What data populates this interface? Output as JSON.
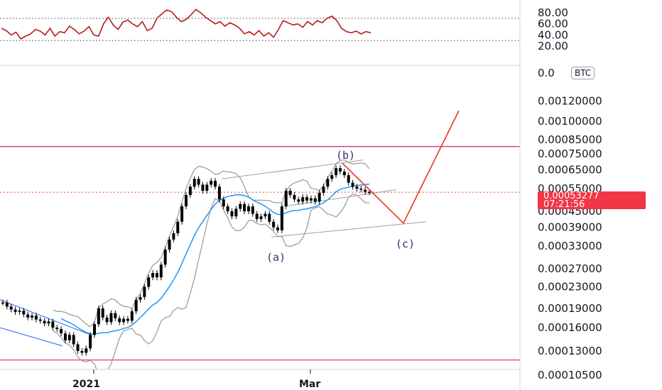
{
  "chart_data": [
    {
      "type": "line",
      "panel": "oscillator",
      "y_ticks": [
        "80.00",
        "60.00",
        "40.00",
        "20.00"
      ],
      "ylim": [
        20,
        90
      ],
      "levels": [
        70,
        30
      ],
      "color": "#b71c1c",
      "values": [
        52,
        48,
        40,
        45,
        33,
        38,
        42,
        50,
        47,
        40,
        52,
        38,
        46,
        44,
        56,
        50,
        42,
        47,
        55,
        40,
        38,
        60,
        72,
        58,
        50,
        63,
        67,
        60,
        55,
        64,
        48,
        52,
        70,
        78,
        85,
        82,
        72,
        64,
        68,
        76,
        86,
        80,
        72,
        66,
        60,
        64,
        56,
        62,
        58,
        52,
        42,
        46,
        40,
        48,
        38,
        44,
        36,
        50,
        66,
        62,
        58,
        60,
        54,
        64,
        58,
        66,
        62,
        70,
        74,
        66,
        52,
        46,
        44,
        47,
        42,
        46,
        44
      ]
    },
    {
      "type": "candlestick",
      "panel": "price",
      "y_ticks": [
        "0.00120000",
        "0.00100000",
        "0.00085000",
        "0.00075000",
        "0.00065000",
        "0.00055000",
        "0.00045000",
        "0.00039000",
        "0.00033000",
        "0.00027000",
        "0.00023000",
        "0.00019000",
        "0.00016000",
        "0.00013000",
        "0.00010500"
      ],
      "y_tick_top_partial": "0.0",
      "x_ticks": [
        "2021",
        "Mar"
      ],
      "currency_badge": "BTC",
      "last_price": "0.00053277",
      "countdown": "07:21:56",
      "horizontal_levels": [
        0.0008,
        0.00012
      ],
      "wave_labels": [
        "(b)",
        "(a)",
        "(c)"
      ],
      "colors": {
        "candles": "#000000",
        "ma": "#2196f3",
        "bands": "#9e9e9e",
        "level": "#e91e63",
        "projection": "#f44336",
        "last_price": "#f23645"
      },
      "closes": [
        0.0002,
        0.000193,
        0.000188,
        0.000184,
        0.000186,
        0.00018,
        0.000175,
        0.000178,
        0.000172,
        0.00017,
        0.000166,
        0.000169,
        0.00016,
        0.000158,
        0.000152,
        0.000143,
        0.00015,
        0.000138,
        0.00013,
        0.000128,
        0.000133,
        0.00015,
        0.000165,
        0.00019,
        0.000175,
        0.000168,
        0.000182,
        0.000174,
        0.000168,
        0.000173,
        0.00017,
        0.000185,
        0.000205,
        0.00021,
        0.00023,
        0.00025,
        0.00026,
        0.00025,
        0.00028,
        0.00032,
        0.00035,
        0.00037,
        0.00041,
        0.00047,
        0.00052,
        0.00056,
        0.0006,
        0.00057,
        0.00054,
        0.00057,
        0.00059,
        0.00056,
        0.0005,
        0.00047,
        0.00045,
        0.00043,
        0.00046,
        0.00048,
        0.00045,
        0.00047,
        0.00044,
        0.00042,
        0.00043,
        0.00044,
        0.00041,
        0.00039,
        0.00038,
        0.00047,
        0.00054,
        0.00052,
        0.0005,
        0.00049,
        0.00051,
        0.000495,
        0.000505,
        0.00049,
        0.00053,
        0.00056,
        0.0006,
        0.00062,
        0.00066,
        0.00064,
        0.00062,
        0.00058,
        0.00056,
        0.00055,
        0.000545,
        0.000535,
        0.000533
      ]
    }
  ]
}
